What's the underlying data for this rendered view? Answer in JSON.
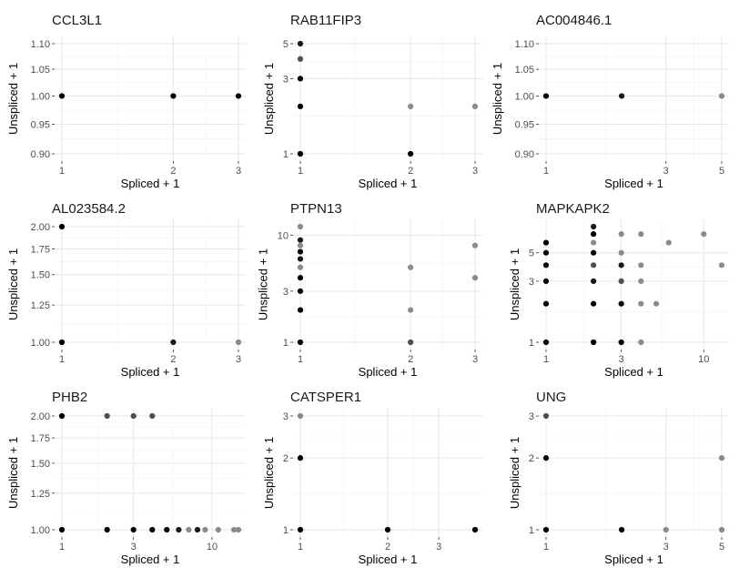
{
  "figure": {
    "background": "#ffffff",
    "gridColor": "#e6e6e6"
  },
  "chart_data": [
    {
      "type": "scatter",
      "title": "CCL3L1",
      "xlabel": "Spliced + 1",
      "ylabel": "Unspliced + 1",
      "xscale": "log",
      "yscale": "log",
      "xlim": [
        1,
        3
      ],
      "ylim": [
        0.9,
        1.1
      ],
      "xticks": [
        1,
        2,
        3
      ],
      "xtick_labels": [
        "1",
        "2",
        "3"
      ],
      "yticks": [
        0.9,
        0.95,
        1.0,
        1.05,
        1.1
      ],
      "ytick_labels": [
        "0.90",
        "0.95",
        "1.00",
        "1.05",
        "1.10"
      ],
      "points": [
        {
          "x": 1,
          "y": 1,
          "c": "#000000"
        },
        {
          "x": 2,
          "y": 1,
          "c": "#000000"
        },
        {
          "x": 3,
          "y": 1,
          "c": "#000000"
        }
      ]
    },
    {
      "type": "scatter",
      "title": "RAB11FIP3",
      "xlabel": "Spliced + 1",
      "ylabel": "Unspliced + 1",
      "xscale": "log",
      "yscale": "log",
      "xlim": [
        1,
        3
      ],
      "ylim": [
        1,
        5
      ],
      "xticks": [
        1,
        2,
        3
      ],
      "xtick_labels": [
        "1",
        "2",
        "3"
      ],
      "yticks": [
        1,
        3,
        5
      ],
      "ytick_labels": [
        "1",
        "3",
        "5"
      ],
      "points": [
        {
          "x": 1,
          "y": 5,
          "c": "#1a1a1a"
        },
        {
          "x": 1,
          "y": 4,
          "c": "#4d4d4d"
        },
        {
          "x": 1,
          "y": 3,
          "c": "#000000"
        },
        {
          "x": 1,
          "y": 2,
          "c": "#000000"
        },
        {
          "x": 1,
          "y": 1,
          "c": "#000000"
        },
        {
          "x": 2,
          "y": 2,
          "c": "#8a8a8a"
        },
        {
          "x": 3,
          "y": 2,
          "c": "#8a8a8a"
        },
        {
          "x": 2,
          "y": 1,
          "c": "#000000"
        }
      ]
    },
    {
      "type": "scatter",
      "title": "AC004846.1",
      "xlabel": "Spliced + 1",
      "ylabel": "Unspliced + 1",
      "xscale": "log",
      "yscale": "log",
      "xlim": [
        1,
        5
      ],
      "ylim": [
        0.9,
        1.1
      ],
      "xticks": [
        1,
        3,
        5
      ],
      "xtick_labels": [
        "1",
        "3",
        "5"
      ],
      "yticks": [
        0.9,
        0.95,
        1.0,
        1.05,
        1.1
      ],
      "ytick_labels": [
        "0.90",
        "0.95",
        "1.00",
        "1.05",
        "1.10"
      ],
      "points": [
        {
          "x": 1,
          "y": 1,
          "c": "#000000"
        },
        {
          "x": 2,
          "y": 1,
          "c": "#1a1a1a"
        },
        {
          "x": 5,
          "y": 1,
          "c": "#8a8a8a"
        }
      ]
    },
    {
      "type": "scatter",
      "title": "AL023584.2",
      "xlabel": "Spliced + 1",
      "ylabel": "Unspliced + 1",
      "xscale": "log",
      "yscale": "log",
      "xlim": [
        1,
        3
      ],
      "ylim": [
        1,
        2
      ],
      "xticks": [
        1,
        2,
        3
      ],
      "xtick_labels": [
        "1",
        "2",
        "3"
      ],
      "yticks": [
        1.0,
        1.25,
        1.5,
        1.75,
        2.0
      ],
      "ytick_labels": [
        "1.00",
        "1.25",
        "1.50",
        "1.75",
        "2.00"
      ],
      "points": [
        {
          "x": 1,
          "y": 2,
          "c": "#000000"
        },
        {
          "x": 1,
          "y": 1,
          "c": "#000000"
        },
        {
          "x": 2,
          "y": 1,
          "c": "#1a1a1a"
        },
        {
          "x": 3,
          "y": 1,
          "c": "#8a8a8a"
        }
      ]
    },
    {
      "type": "scatter",
      "title": "PTPN13",
      "xlabel": "Spliced + 1",
      "ylabel": "Unspliced + 1",
      "xscale": "log",
      "yscale": "log",
      "xlim": [
        1,
        3
      ],
      "ylim": [
        1,
        12
      ],
      "xticks": [
        1,
        2,
        3
      ],
      "xtick_labels": [
        "1",
        "2",
        "3"
      ],
      "yticks": [
        1,
        3,
        10
      ],
      "ytick_labels": [
        "1",
        "3",
        "10"
      ],
      "points": [
        {
          "x": 1,
          "y": 12,
          "c": "#8a8a8a"
        },
        {
          "x": 1,
          "y": 9,
          "c": "#1a1a1a"
        },
        {
          "x": 1,
          "y": 8,
          "c": "#8a8a8a"
        },
        {
          "x": 1,
          "y": 7,
          "c": "#000000"
        },
        {
          "x": 1,
          "y": 6,
          "c": "#1a1a1a"
        },
        {
          "x": 1,
          "y": 5,
          "c": "#8a8a8a"
        },
        {
          "x": 1,
          "y": 4,
          "c": "#000000"
        },
        {
          "x": 1,
          "y": 3,
          "c": "#000000"
        },
        {
          "x": 1,
          "y": 2,
          "c": "#000000"
        },
        {
          "x": 1,
          "y": 1,
          "c": "#000000"
        },
        {
          "x": 2,
          "y": 5,
          "c": "#8a8a8a"
        },
        {
          "x": 2,
          "y": 2,
          "c": "#8a8a8a"
        },
        {
          "x": 2,
          "y": 1,
          "c": "#4d4d4d"
        },
        {
          "x": 3,
          "y": 8,
          "c": "#8a8a8a"
        },
        {
          "x": 3,
          "y": 4,
          "c": "#8a8a8a"
        }
      ]
    },
    {
      "type": "scatter",
      "title": "MAPKAPK2",
      "xlabel": "Spliced + 1",
      "ylabel": "Unspliced + 1",
      "xscale": "log",
      "yscale": "log",
      "xlim": [
        1,
        13
      ],
      "ylim": [
        1,
        8
      ],
      "xticks": [
        1,
        3,
        10
      ],
      "xtick_labels": [
        "1",
        "3",
        "10"
      ],
      "yticks": [
        1,
        3,
        5
      ],
      "ytick_labels": [
        "1",
        "3",
        "5"
      ],
      "points": [
        {
          "x": 1,
          "y": 6,
          "c": "#000000"
        },
        {
          "x": 1,
          "y": 5,
          "c": "#000000"
        },
        {
          "x": 1,
          "y": 4,
          "c": "#000000"
        },
        {
          "x": 1,
          "y": 3,
          "c": "#000000"
        },
        {
          "x": 1,
          "y": 2,
          "c": "#000000"
        },
        {
          "x": 1,
          "y": 1,
          "c": "#000000"
        },
        {
          "x": 2,
          "y": 8,
          "c": "#1a1a1a"
        },
        {
          "x": 2,
          "y": 7,
          "c": "#000000"
        },
        {
          "x": 2,
          "y": 6,
          "c": "#8a8a8a"
        },
        {
          "x": 2,
          "y": 5,
          "c": "#000000"
        },
        {
          "x": 2,
          "y": 4,
          "c": "#4d4d4d"
        },
        {
          "x": 2,
          "y": 3,
          "c": "#1a1a1a"
        },
        {
          "x": 2,
          "y": 2,
          "c": "#000000"
        },
        {
          "x": 2,
          "y": 1,
          "c": "#000000"
        },
        {
          "x": 3,
          "y": 7,
          "c": "#8a8a8a"
        },
        {
          "x": 3,
          "y": 5,
          "c": "#8a8a8a"
        },
        {
          "x": 3,
          "y": 4,
          "c": "#1a1a1a"
        },
        {
          "x": 3,
          "y": 3,
          "c": "#4d4d4d"
        },
        {
          "x": 3,
          "y": 2,
          "c": "#000000"
        },
        {
          "x": 3,
          "y": 1,
          "c": "#000000"
        },
        {
          "x": 4,
          "y": 7,
          "c": "#8a8a8a"
        },
        {
          "x": 4,
          "y": 4,
          "c": "#8a8a8a"
        },
        {
          "x": 4,
          "y": 3,
          "c": "#8a8a8a"
        },
        {
          "x": 4,
          "y": 2,
          "c": "#8a8a8a"
        },
        {
          "x": 4,
          "y": 1,
          "c": "#8a8a8a"
        },
        {
          "x": 5,
          "y": 2,
          "c": "#8a8a8a"
        },
        {
          "x": 6,
          "y": 6,
          "c": "#8a8a8a"
        },
        {
          "x": 10,
          "y": 7,
          "c": "#8a8a8a"
        },
        {
          "x": 13,
          "y": 4,
          "c": "#8a8a8a"
        }
      ]
    },
    {
      "type": "scatter",
      "title": "PHB2",
      "xlabel": "Spliced + 1",
      "ylabel": "Unspliced + 1",
      "xscale": "log",
      "yscale": "log",
      "xlim": [
        1,
        15
      ],
      "ylim": [
        1,
        2
      ],
      "xticks": [
        1,
        3,
        10
      ],
      "xtick_labels": [
        "1",
        "3",
        "10"
      ],
      "yticks": [
        1.0,
        1.25,
        1.5,
        1.75,
        2.0
      ],
      "ytick_labels": [
        "1.00",
        "1.25",
        "1.50",
        "1.75",
        "2.00"
      ],
      "points": [
        {
          "x": 1,
          "y": 2,
          "c": "#000000"
        },
        {
          "x": 2,
          "y": 2,
          "c": "#4d4d4d"
        },
        {
          "x": 3,
          "y": 2,
          "c": "#4d4d4d"
        },
        {
          "x": 4,
          "y": 2,
          "c": "#4d4d4d"
        },
        {
          "x": 1,
          "y": 1,
          "c": "#000000"
        },
        {
          "x": 2,
          "y": 1,
          "c": "#000000"
        },
        {
          "x": 3,
          "y": 1,
          "c": "#000000"
        },
        {
          "x": 4,
          "y": 1,
          "c": "#000000"
        },
        {
          "x": 5,
          "y": 1,
          "c": "#000000"
        },
        {
          "x": 6,
          "y": 1,
          "c": "#1a1a1a"
        },
        {
          "x": 7,
          "y": 1,
          "c": "#8a8a8a"
        },
        {
          "x": 8,
          "y": 1,
          "c": "#1a1a1a"
        },
        {
          "x": 9,
          "y": 1,
          "c": "#8a8a8a"
        },
        {
          "x": 11,
          "y": 1,
          "c": "#8a8a8a"
        },
        {
          "x": 14,
          "y": 1,
          "c": "#8a8a8a"
        },
        {
          "x": 15,
          "y": 1,
          "c": "#8a8a8a"
        }
      ]
    },
    {
      "type": "scatter",
      "title": "CATSPER1",
      "xlabel": "Spliced + 1",
      "ylabel": "Unspliced + 1",
      "xscale": "log",
      "yscale": "log",
      "xlim": [
        1,
        4
      ],
      "ylim": [
        1,
        3
      ],
      "xticks": [
        1,
        2,
        3
      ],
      "xtick_labels": [
        "1",
        "2",
        "3"
      ],
      "yticks": [
        1,
        2,
        3
      ],
      "ytick_labels": [
        "1",
        "2",
        "3"
      ],
      "points": [
        {
          "x": 1,
          "y": 3,
          "c": "#8a8a8a"
        },
        {
          "x": 1,
          "y": 2,
          "c": "#000000"
        },
        {
          "x": 1,
          "y": 1,
          "c": "#000000"
        },
        {
          "x": 2,
          "y": 1,
          "c": "#000000"
        },
        {
          "x": 4,
          "y": 1,
          "c": "#000000"
        }
      ]
    },
    {
      "type": "scatter",
      "title": "UNG",
      "xlabel": "Spliced + 1",
      "ylabel": "Unspliced + 1",
      "xscale": "log",
      "yscale": "log",
      "xlim": [
        1,
        5
      ],
      "ylim": [
        1,
        3
      ],
      "xticks": [
        1,
        3,
        5
      ],
      "xtick_labels": [
        "1",
        "3",
        "5"
      ],
      "yticks": [
        1,
        2,
        3
      ],
      "ytick_labels": [
        "1",
        "2",
        "3"
      ],
      "points": [
        {
          "x": 1,
          "y": 3,
          "c": "#4d4d4d"
        },
        {
          "x": 1,
          "y": 2,
          "c": "#000000"
        },
        {
          "x": 1,
          "y": 1,
          "c": "#000000"
        },
        {
          "x": 2,
          "y": 1,
          "c": "#000000"
        },
        {
          "x": 3,
          "y": 1,
          "c": "#8a8a8a"
        },
        {
          "x": 5,
          "y": 2,
          "c": "#8a8a8a"
        },
        {
          "x": 5,
          "y": 1,
          "c": "#8a8a8a"
        }
      ]
    }
  ]
}
